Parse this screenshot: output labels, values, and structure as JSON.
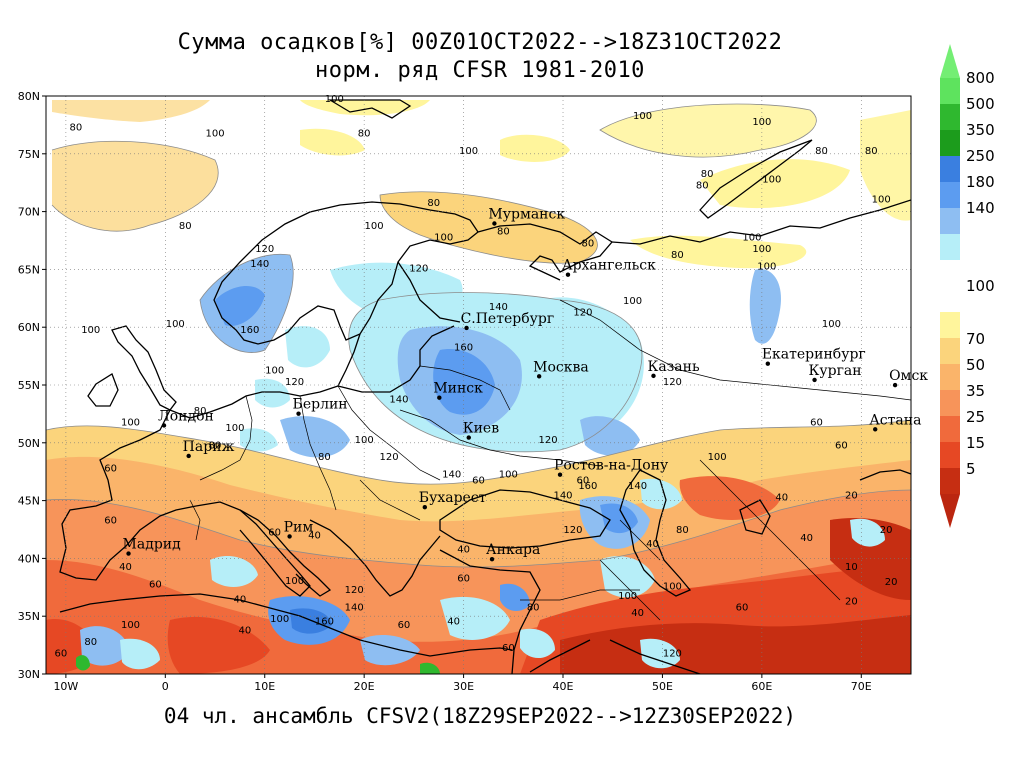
{
  "title_line1": "Сумма осадков[%] 00Z01OCT2022-->18Z31OCT2022",
  "title_line2": "норм. ряд CFSR 1981-2010",
  "footer": "04 чл. ансамбль CFSV2(18Z29SEP2022-->12Z30SEP2022)",
  "map": {
    "lon_range": [
      -12,
      75
    ],
    "lat_range": [
      30,
      80
    ],
    "lon_ticks": [
      {
        "lon": -10,
        "label": "10W"
      },
      {
        "lon": 0,
        "label": "0"
      },
      {
        "lon": 10,
        "label": "10E"
      },
      {
        "lon": 20,
        "label": "20E"
      },
      {
        "lon": 30,
        "label": "30E"
      },
      {
        "lon": 40,
        "label": "40E"
      },
      {
        "lon": 50,
        "label": "50E"
      },
      {
        "lon": 60,
        "label": "60E"
      },
      {
        "lon": 70,
        "label": "70E"
      }
    ],
    "lat_ticks": [
      {
        "lat": 30,
        "label": "30N"
      },
      {
        "lat": 35,
        "label": "35N"
      },
      {
        "lat": 40,
        "label": "40N"
      },
      {
        "lat": 45,
        "label": "45N"
      },
      {
        "lat": 50,
        "label": "50N"
      },
      {
        "lat": 55,
        "label": "55N"
      },
      {
        "lat": 60,
        "label": "60N"
      },
      {
        "lat": 65,
        "label": "65N"
      },
      {
        "lat": 70,
        "label": "70N"
      },
      {
        "lat": 75,
        "label": "75N"
      },
      {
        "lat": 80,
        "label": "80N"
      }
    ],
    "grid_lines": true,
    "cities": [
      {
        "name": "Мурманск",
        "lon": 33.1,
        "lat": 68.97
      },
      {
        "name": "Архангельск",
        "lon": 40.5,
        "lat": 64.54
      },
      {
        "name": "С.Петербург",
        "lon": 30.3,
        "lat": 59.94
      },
      {
        "name": "Москва",
        "lon": 37.6,
        "lat": 55.75
      },
      {
        "name": "Казань",
        "lon": 49.1,
        "lat": 55.79
      },
      {
        "name": "Екатеринбург",
        "lon": 60.6,
        "lat": 56.84
      },
      {
        "name": "Курган",
        "lon": 65.3,
        "lat": 55.44
      },
      {
        "name": "Омск",
        "lon": 73.4,
        "lat": 54.99
      },
      {
        "name": "Астана",
        "lon": 71.4,
        "lat": 51.17
      },
      {
        "name": "Минск",
        "lon": 27.56,
        "lat": 53.9
      },
      {
        "name": "Киев",
        "lon": 30.52,
        "lat": 50.45
      },
      {
        "name": "Ростов-на-Дону",
        "lon": 39.7,
        "lat": 47.24
      },
      {
        "name": "Берлин",
        "lon": 13.4,
        "lat": 52.52
      },
      {
        "name": "Лондон",
        "lon": -0.13,
        "lat": 51.5
      },
      {
        "name": "Париж",
        "lon": 2.35,
        "lat": 48.86
      },
      {
        "name": "Бухарест",
        "lon": 26.1,
        "lat": 44.43
      },
      {
        "name": "Рим",
        "lon": 12.5,
        "lat": 41.9
      },
      {
        "name": "Мадрид",
        "lon": -3.7,
        "lat": 40.42
      },
      {
        "name": "Анкара",
        "lon": 32.86,
        "lat": 39.93
      }
    ],
    "contour_labels": [
      {
        "text": "80",
        "lon": -9,
        "lat": 77
      },
      {
        "text": "100",
        "lon": 5,
        "lat": 76.5
      },
      {
        "text": "100",
        "lon": 17,
        "lat": 79.5
      },
      {
        "text": "80",
        "lon": 20,
        "lat": 76.5
      },
      {
        "text": "100",
        "lon": 30.5,
        "lat": 75
      },
      {
        "text": "100",
        "lon": 48,
        "lat": 78
      },
      {
        "text": "100",
        "lon": 60,
        "lat": 77.5
      },
      {
        "text": "80",
        "lon": 54,
        "lat": 72
      },
      {
        "text": "80",
        "lon": 66,
        "lat": 75
      },
      {
        "text": "100",
        "lon": 61,
        "lat": 72.5
      },
      {
        "text": "80",
        "lon": 71,
        "lat": 75
      },
      {
        "text": "80",
        "lon": 54.5,
        "lat": 73
      },
      {
        "text": "100",
        "lon": 72,
        "lat": 70.8
      },
      {
        "text": "80",
        "lon": 2,
        "lat": 68.5
      },
      {
        "text": "120",
        "lon": 10,
        "lat": 66.5
      },
      {
        "text": "140",
        "lon": 9.5,
        "lat": 65.2
      },
      {
        "text": "80",
        "lon": 27,
        "lat": 70.5
      },
      {
        "text": "100",
        "lon": 21,
        "lat": 68.5
      },
      {
        "text": "100",
        "lon": 28,
        "lat": 67.5
      },
      {
        "text": "120",
        "lon": 25.5,
        "lat": 64.8
      },
      {
        "text": "80",
        "lon": 34,
        "lat": 68
      },
      {
        "text": "80",
        "lon": 42.5,
        "lat": 67
      },
      {
        "text": "80",
        "lon": 51.5,
        "lat": 66
      },
      {
        "text": "100",
        "lon": 47,
        "lat": 62
      },
      {
        "text": "100",
        "lon": 60.5,
        "lat": 65
      },
      {
        "text": "100",
        "lon": 59,
        "lat": 67.5
      },
      {
        "text": "100",
        "lon": -7.5,
        "lat": 59.5
      },
      {
        "text": "100",
        "lon": 1,
        "lat": 60
      },
      {
        "text": "160",
        "lon": 8.5,
        "lat": 59.5
      },
      {
        "text": "140",
        "lon": 33.5,
        "lat": 61.5
      },
      {
        "text": "120",
        "lon": 42,
        "lat": 61
      },
      {
        "text": "160",
        "lon": 30,
        "lat": 58
      },
      {
        "text": "100",
        "lon": 67,
        "lat": 60
      },
      {
        "text": "100",
        "lon": 11,
        "lat": 56
      },
      {
        "text": "120",
        "lon": 13,
        "lat": 55
      },
      {
        "text": "140",
        "lon": 23.5,
        "lat": 53.5
      },
      {
        "text": "120",
        "lon": 51,
        "lat": 55
      },
      {
        "text": "120",
        "lon": 38.5,
        "lat": 50
      },
      {
        "text": "100",
        "lon": 7,
        "lat": 51
      },
      {
        "text": "80",
        "lon": 3.5,
        "lat": 52.5
      },
      {
        "text": "80",
        "lon": 5,
        "lat": 49.5
      },
      {
        "text": "100",
        "lon": -3.5,
        "lat": 51.5
      },
      {
        "text": "80",
        "lon": 16,
        "lat": 48.5
      },
      {
        "text": "100",
        "lon": 20,
        "lat": 50
      },
      {
        "text": "120",
        "lon": 22.5,
        "lat": 48.5
      },
      {
        "text": "140",
        "lon": 28.8,
        "lat": 47
      },
      {
        "text": "100",
        "lon": 34.5,
        "lat": 47
      },
      {
        "text": "60",
        "lon": -5.5,
        "lat": 47.5
      },
      {
        "text": "100",
        "lon": 55.5,
        "lat": 48.5
      },
      {
        "text": "60",
        "lon": 65.5,
        "lat": 51.5
      },
      {
        "text": "60",
        "lon": 68,
        "lat": 49.5
      },
      {
        "text": "140",
        "lon": 40,
        "lat": 45.2
      },
      {
        "text": "160",
        "lon": 42.5,
        "lat": 46
      },
      {
        "text": "140",
        "lon": 47.5,
        "lat": 46
      },
      {
        "text": "60",
        "lon": 42,
        "lat": 46.5
      },
      {
        "text": "60",
        "lon": 31.5,
        "lat": 46.5
      },
      {
        "text": "40",
        "lon": 62,
        "lat": 45
      },
      {
        "text": "20",
        "lon": 69,
        "lat": 45.2
      },
      {
        "text": "60",
        "lon": -5.5,
        "lat": 43
      },
      {
        "text": "40",
        "lon": 15,
        "lat": 41.7
      },
      {
        "text": "60",
        "lon": 11,
        "lat": 42
      },
      {
        "text": "40",
        "lon": 30,
        "lat": 40.5
      },
      {
        "text": "40",
        "lon": 49,
        "lat": 41
      },
      {
        "text": "80",
        "lon": 52,
        "lat": 42.2
      },
      {
        "text": "40",
        "lon": 64.5,
        "lat": 41.5
      },
      {
        "text": "20",
        "lon": 72.5,
        "lat": 42.2
      },
      {
        "text": "60",
        "lon": 30,
        "lat": 38
      },
      {
        "text": "120",
        "lon": 41,
        "lat": 42.2
      },
      {
        "text": "40",
        "lon": -4,
        "lat": 39
      },
      {
        "text": "60",
        "lon": -1,
        "lat": 37.5
      },
      {
        "text": "40",
        "lon": 7.5,
        "lat": 36.2
      },
      {
        "text": "40",
        "lon": 8,
        "lat": 33.5
      },
      {
        "text": "100",
        "lon": 13,
        "lat": 37.8
      },
      {
        "text": "120",
        "lon": 19,
        "lat": 37
      },
      {
        "text": "140",
        "lon": 19,
        "lat": 35.5
      },
      {
        "text": "160",
        "lon": 16,
        "lat": 34.3
      },
      {
        "text": "60",
        "lon": 24,
        "lat": 34
      },
      {
        "text": "40",
        "lon": 29,
        "lat": 34.3
      },
      {
        "text": "100",
        "lon": -3.5,
        "lat": 34
      },
      {
        "text": "80",
        "lon": -7.5,
        "lat": 32.5
      },
      {
        "text": "60",
        "lon": -10.5,
        "lat": 31.5
      },
      {
        "text": "100",
        "lon": 11.5,
        "lat": 34.5
      },
      {
        "text": "80",
        "lon": 37,
        "lat": 35.5
      },
      {
        "text": "60",
        "lon": 34.5,
        "lat": 32
      },
      {
        "text": "120",
        "lon": 51,
        "lat": 31.5
      },
      {
        "text": "40",
        "lon": 47.5,
        "lat": 35
      },
      {
        "text": "60",
        "lon": 58,
        "lat": 35.5
      },
      {
        "text": "20",
        "lon": 69,
        "lat": 36
      },
      {
        "text": "10",
        "lon": 69,
        "lat": 39
      },
      {
        "text": "20",
        "lon": 73,
        "lat": 37.7
      },
      {
        "text": "100",
        "lon": 46.5,
        "lat": 36.5
      },
      {
        "text": "100",
        "lon": 51,
        "lat": 37.3
      },
      {
        "text": "100",
        "lon": 60,
        "lat": 66.5
      }
    ]
  },
  "colorbar": {
    "upper": [
      {
        "label": "800",
        "color": "#5ee35e"
      },
      {
        "label": "500",
        "color": "#2fb82f"
      },
      {
        "label": "350",
        "color": "#1c9c1c"
      },
      {
        "label": "250",
        "color": "#3a7fe0"
      },
      {
        "label": "180",
        "color": "#5c9cf0"
      },
      {
        "label": "140",
        "color": "#8ebef2"
      },
      {
        "label": "",
        "color": "#b6eef8"
      }
    ],
    "mid_label": "100",
    "lower": [
      {
        "label": "70",
        "color": "#fff59c"
      },
      {
        "label": "50",
        "color": "#fbd47c"
      },
      {
        "label": "35",
        "color": "#fab46a"
      },
      {
        "label": "25",
        "color": "#f7945a"
      },
      {
        "label": "15",
        "color": "#f06a3c"
      },
      {
        "label": "5",
        "color": "#e64824"
      },
      {
        "label": "",
        "color": "#c62e12"
      }
    ],
    "top_arrow_color": "#74ee74",
    "bottom_arrow_color": "#bb2610"
  },
  "colors": {
    "land_outline": "#000000",
    "contour": "#8c8c8c"
  }
}
